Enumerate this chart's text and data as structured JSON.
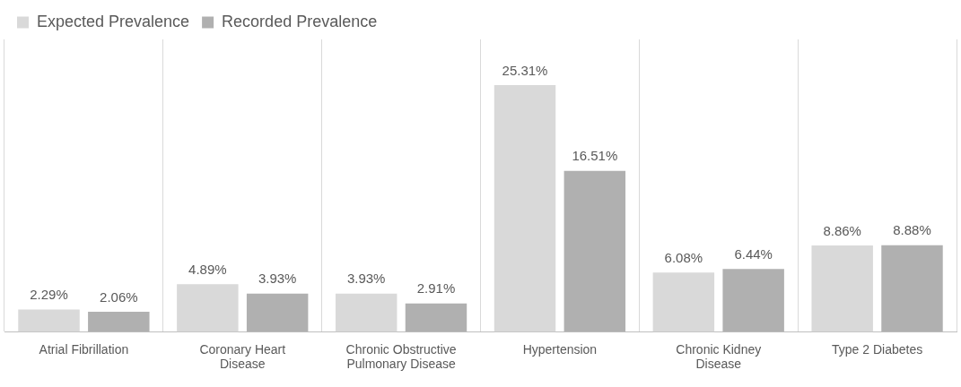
{
  "chart_data": {
    "type": "bar",
    "categories": [
      "Atrial Fibrillation",
      "Coronary Heart Disease",
      "Chronic Obstructive Pulmonary Disease",
      "Hypertension",
      "Chronic Kidney Disease",
      "Type 2 Diabetes"
    ],
    "series": [
      {
        "name": "Expected Prevalence",
        "color": "#d9d9d9",
        "values": [
          2.29,
          4.89,
          3.93,
          25.31,
          6.08,
          8.86
        ],
        "value_labels": [
          "2.29%",
          "4.89%",
          "3.93%",
          "25.31%",
          "6.08%",
          "8.86%"
        ]
      },
      {
        "name": "Recorded Prevalence",
        "color": "#b0b0b0",
        "values": [
          2.06,
          3.93,
          2.91,
          16.51,
          6.44,
          8.88
        ],
        "value_labels": [
          "2.06%",
          "3.93%",
          "2.91%",
          "16.51%",
          "6.44%",
          "8.88%"
        ]
      }
    ],
    "grid": "x",
    "legend": "top left"
  }
}
